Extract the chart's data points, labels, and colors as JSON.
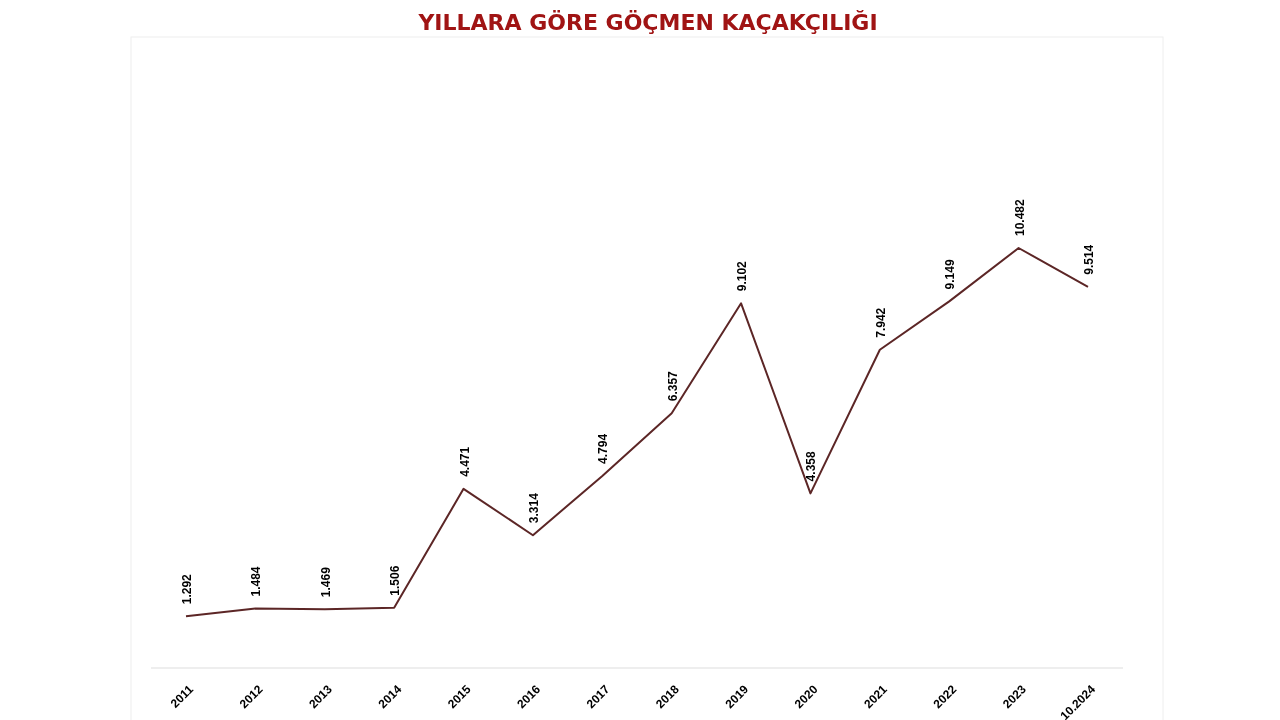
{
  "chart_data": {
    "type": "line",
    "title": "YILLARA GÖRE GÖÇMEN KAÇAKÇILIĞI",
    "categories": [
      "2011",
      "2012",
      "2013",
      "2014",
      "2015",
      "2016",
      "2017",
      "2018",
      "2019",
      "2020",
      "2021",
      "2022",
      "2023",
      "10.2024"
    ],
    "series": [
      {
        "color": "#5c2626",
        "values": [
          1292,
          1484,
          1469,
          1506,
          4471,
          3314,
          4794,
          6357,
          9102,
          4358,
          7942,
          9149,
          10482,
          9514
        ],
        "value_labels": [
          "1.292",
          "1.484",
          "1.469",
          "1.506",
          "4.471",
          "3.314",
          "4.794",
          "6.357",
          "9.102",
          "4.358",
          "7.942",
          "9.149",
          "10.482",
          "9.514"
        ]
      }
    ],
    "marker": "none",
    "line_style": "solid"
  }
}
